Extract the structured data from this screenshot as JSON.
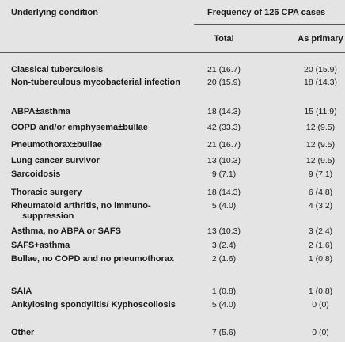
{
  "header": {
    "condition": "Underlying condition",
    "frequency": "Frequency of 126 CPA cases",
    "total": "Total",
    "primary": "As primary"
  },
  "table": {
    "rows": [
      [
        "Classical tuberculosis",
        "21 (16.7)",
        "20 (15.9)"
      ],
      [
        "Non-tuberculous mycobacterial infection",
        "20 (15.9)",
        "18 (14.3)"
      ],
      [
        "ABPA±asthma",
        "18 (14.3)",
        "15 (11.9)"
      ],
      [
        "COPD and/or emphysema±bullae",
        "42 (33.3)",
        "12 (9.5)"
      ],
      [
        "Pneumothorax±bullae",
        "21 (16.7)",
        "12 (9.5)"
      ],
      [
        "Lung cancer survivor",
        "13 (10.3)",
        "12 (9.5)"
      ],
      [
        "Sarcoidosis",
        "9 (7.1)",
        "9 (7.1)"
      ],
      [
        "Thoracic surgery",
        "18 (14.3)",
        "6 (4.8)"
      ],
      [
        "Rheumatoid arthritis, no immuno-suppression",
        "5 (4.0)",
        "4 (3.2)"
      ],
      [
        "Asthma, no ABPA or SAFS",
        "13 (10.3)",
        "3 (2.4)"
      ],
      [
        "SAFS+asthma",
        "3 (2.4)",
        "2 (1.6)"
      ],
      [
        "Bullae, no COPD and no pneumothorax",
        "2 (1.6)",
        "1 (0.8)"
      ],
      [
        "SAIA",
        "1 (0.8)",
        "1 (0.8)"
      ],
      [
        "Ankylosing spondylitis/ Kyphoscoliosis",
        "5 (4.0)",
        "0 (0)"
      ],
      [
        "Other",
        "7 (5.6)",
        "0 (0)"
      ]
    ]
  }
}
